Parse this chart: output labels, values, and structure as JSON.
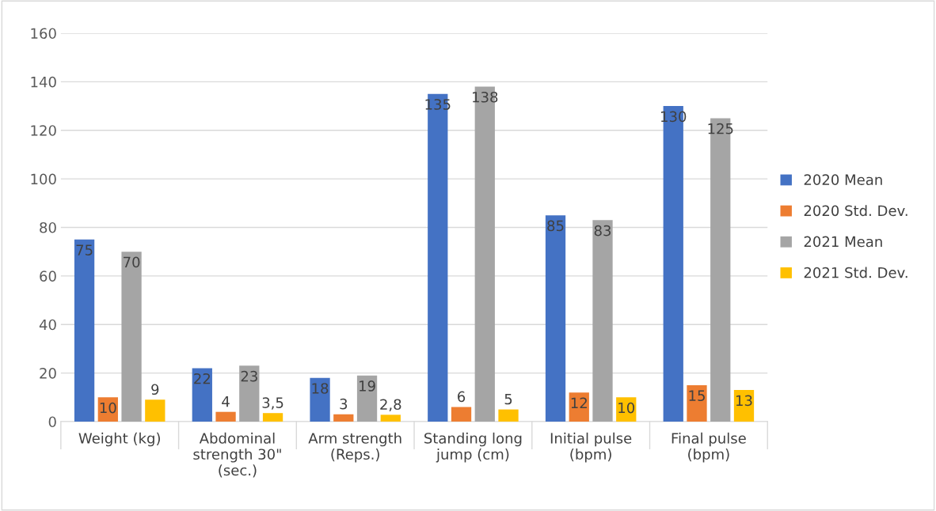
{
  "chart_data": {
    "type": "bar",
    "categories": [
      "Weight (kg)",
      "Abdominal\nstrength 30\"\n(sec.)",
      "Arm strength\n(Reps.)",
      "Standing long\njump (cm)",
      "Initial pulse\n(bpm)",
      "Final pulse\n(bpm)"
    ],
    "series": [
      {
        "name": "2020 Mean",
        "color": "#4472c4",
        "values": [
          75,
          22,
          18,
          135,
          85,
          130
        ],
        "value_labels": [
          "75",
          "22",
          "18",
          "135",
          "85",
          "130"
        ]
      },
      {
        "name": "2020 Std. Dev.",
        "color": "#ed7d31",
        "values": [
          10,
          4,
          3,
          6,
          12,
          15
        ],
        "value_labels": [
          "10",
          "4",
          "3",
          "6",
          "12",
          "15"
        ]
      },
      {
        "name": "2021 Mean",
        "color": "#a5a5a5",
        "values": [
          70,
          23,
          19,
          138,
          83,
          125
        ],
        "value_labels": [
          "70",
          "23",
          "19",
          "138",
          "83",
          "125"
        ]
      },
      {
        "name": "2021 Std. Dev.",
        "color": "#ffc000",
        "values": [
          9,
          3.5,
          2.8,
          5,
          10,
          13
        ],
        "value_labels": [
          "9",
          "3,5",
          "2,8",
          "5",
          "10",
          "13"
        ]
      }
    ],
    "ylim": [
      0,
      160
    ],
    "yticks": [
      0,
      20,
      40,
      60,
      80,
      100,
      120,
      140,
      160
    ],
    "grid": "y",
    "legend": "right"
  }
}
